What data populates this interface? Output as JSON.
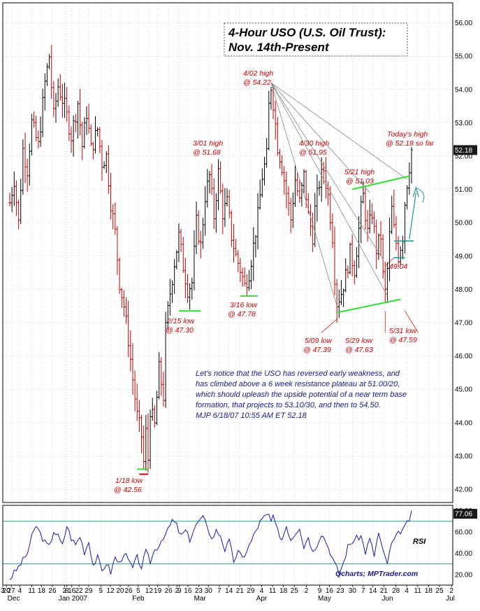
{
  "chart_data": [
    {
      "type": "line",
      "variant": "ohlc",
      "title": "4-Hour USO (U.S. Oil Trust): Nov. 14th-Present",
      "title_lines": [
        "4-Hour USO (U.S. Oil Trust):",
        "Nov. 14th-Present"
      ],
      "ylim": [
        41.6,
        56.6
      ],
      "yticks": [
        42.0,
        43.0,
        44.0,
        45.0,
        46.0,
        47.0,
        48.0,
        49.0,
        50.0,
        51.0,
        52.0,
        53.0,
        54.0,
        55.0,
        56.0
      ],
      "ytick_labels": [
        "42.00",
        "43.00",
        "44.00",
        "45.00",
        "46.00",
        "47.00",
        "48.00",
        "49.00",
        "50.00",
        "51.00",
        "52.00",
        "53.00",
        "54.00",
        "55.00",
        "56.00"
      ],
      "last_price_label": "52.18",
      "last_price": 52.18,
      "price_path": [
        [
          0,
          50.6
        ],
        [
          2,
          51.3
        ],
        [
          4,
          50.0
        ],
        [
          6,
          52.2
        ],
        [
          8,
          51.6
        ],
        [
          10,
          53.0
        ],
        [
          13,
          52.3
        ],
        [
          16,
          54.2
        ],
        [
          18,
          55.0
        ],
        [
          20,
          53.2
        ],
        [
          22,
          54.1
        ],
        [
          25,
          53.5
        ],
        [
          28,
          52.6
        ],
        [
          31,
          53.6
        ],
        [
          33,
          52.3
        ],
        [
          35,
          53.3
        ],
        [
          37,
          52.2
        ],
        [
          40,
          52.8
        ],
        [
          42,
          51.8
        ],
        [
          44,
          52.0
        ],
        [
          46,
          50.6
        ],
        [
          48,
          49.7
        ],
        [
          50,
          48.2
        ],
        [
          52,
          47.5
        ],
        [
          54,
          46.5
        ],
        [
          56,
          45.3
        ],
        [
          58,
          44.2
        ],
        [
          60,
          43.6
        ],
        [
          61,
          42.8
        ],
        [
          62,
          43.7
        ],
        [
          63,
          42.9
        ],
        [
          64,
          44.4
        ],
        [
          66,
          43.9
        ],
        [
          68,
          45.6
        ],
        [
          70,
          44.8
        ],
        [
          71,
          46.8
        ],
        [
          73,
          47.9
        ],
        [
          75,
          48.8
        ],
        [
          77,
          49.6
        ],
        [
          79,
          48.7
        ],
        [
          81,
          48.0
        ],
        [
          83,
          48.2
        ],
        [
          85,
          50.0
        ],
        [
          87,
          49.3
        ],
        [
          89,
          50.8
        ],
        [
          91,
          51.4
        ],
        [
          93,
          50.2
        ],
        [
          95,
          51.5
        ],
        [
          97,
          50.3
        ],
        [
          99,
          50.6
        ],
        [
          101,
          49.6
        ],
        [
          103,
          49.0
        ],
        [
          105,
          48.6
        ],
        [
          107,
          48.1
        ],
        [
          109,
          48.5
        ],
        [
          111,
          49.3
        ],
        [
          113,
          50.2
        ],
        [
          115,
          51.4
        ],
        [
          117,
          52.0
        ],
        [
          118,
          53.5
        ],
        [
          119,
          54.1
        ],
        [
          120,
          53.6
        ],
        [
          122,
          52.3
        ],
        [
          124,
          51.7
        ],
        [
          126,
          50.9
        ],
        [
          128,
          50.1
        ],
        [
          130,
          51.3
        ],
        [
          132,
          50.6
        ],
        [
          134,
          51.4
        ],
        [
          136,
          50.2
        ],
        [
          138,
          49.6
        ],
        [
          139,
          50.4
        ],
        [
          141,
          51.2
        ],
        [
          143,
          51.6
        ],
        [
          145,
          50.8
        ],
        [
          147,
          49.6
        ],
        [
          148,
          48.4
        ],
        [
          149,
          47.6
        ],
        [
          151,
          47.9
        ],
        [
          153,
          48.4
        ],
        [
          155,
          49.1
        ],
        [
          157,
          48.6
        ],
        [
          159,
          49.8
        ],
        [
          160,
          50.4
        ],
        [
          161,
          50.8
        ],
        [
          163,
          49.7
        ],
        [
          165,
          50.3
        ],
        [
          167,
          49.2
        ],
        [
          169,
          49.6
        ],
        [
          170,
          48.4
        ],
        [
          171,
          47.9
        ],
        [
          172,
          48.6
        ],
        [
          173,
          49.6
        ],
        [
          174,
          50.4
        ],
        [
          175,
          49.8
        ],
        [
          176,
          49.4
        ],
        [
          177,
          49.0
        ],
        [
          178,
          49.3
        ],
        [
          179,
          49.6
        ],
        [
          180,
          50.6
        ],
        [
          181,
          51.2
        ],
        [
          182,
          51.7
        ],
        [
          183,
          52.18
        ]
      ],
      "rsi": {
        "label": "RSI",
        "ylim": [
          10,
          85
        ],
        "yticks": [
          20,
          40,
          60,
          80
        ],
        "ytick_labels": [
          "20.00",
          "40.00",
          "60.00",
          "80.00"
        ],
        "reference_levels": [
          30,
          70
        ],
        "last_value": 77.06,
        "last_label": "77.06",
        "path": [
          [
            0,
            16
          ],
          [
            4,
            27
          ],
          [
            8,
            40
          ],
          [
            10,
            55
          ],
          [
            12,
            66
          ],
          [
            14,
            58
          ],
          [
            16,
            50
          ],
          [
            18,
            46
          ],
          [
            20,
            61
          ],
          [
            22,
            56
          ],
          [
            24,
            47
          ],
          [
            26,
            66
          ],
          [
            28,
            54
          ],
          [
            30,
            48
          ],
          [
            32,
            56
          ],
          [
            34,
            41
          ],
          [
            36,
            51
          ],
          [
            38,
            29
          ],
          [
            40,
            36
          ],
          [
            42,
            23
          ],
          [
            44,
            31
          ],
          [
            46,
            22
          ],
          [
            48,
            36
          ],
          [
            50,
            30
          ],
          [
            52,
            41
          ],
          [
            54,
            33
          ],
          [
            56,
            26
          ],
          [
            58,
            36
          ],
          [
            60,
            27
          ],
          [
            62,
            41
          ],
          [
            64,
            32
          ],
          [
            66,
            43
          ],
          [
            68,
            48
          ],
          [
            70,
            56
          ],
          [
            72,
            61
          ],
          [
            74,
            71
          ],
          [
            76,
            66
          ],
          [
            78,
            56
          ],
          [
            80,
            61
          ],
          [
            82,
            53
          ],
          [
            84,
            63
          ],
          [
            86,
            70
          ],
          [
            88,
            73
          ],
          [
            90,
            66
          ],
          [
            92,
            53
          ],
          [
            94,
            61
          ],
          [
            96,
            57
          ],
          [
            98,
            43
          ],
          [
            100,
            51
          ],
          [
            102,
            33
          ],
          [
            104,
            41
          ],
          [
            106,
            35
          ],
          [
            108,
            43
          ],
          [
            110,
            51
          ],
          [
            112,
            61
          ],
          [
            114,
            69
          ],
          [
            116,
            74
          ],
          [
            118,
            76
          ],
          [
            119,
            70
          ],
          [
            120,
            73
          ],
          [
            122,
            61
          ],
          [
            124,
            53
          ],
          [
            126,
            66
          ],
          [
            128,
            53
          ],
          [
            130,
            59
          ],
          [
            132,
            65
          ],
          [
            134,
            46
          ],
          [
            136,
            56
          ],
          [
            138,
            41
          ],
          [
            140,
            49
          ],
          [
            142,
            59
          ],
          [
            144,
            51
          ],
          [
            146,
            41
          ],
          [
            148,
            30
          ],
          [
            150,
            21
          ],
          [
            152,
            31
          ],
          [
            154,
            46
          ],
          [
            156,
            51
          ],
          [
            158,
            54
          ],
          [
            160,
            56
          ],
          [
            162,
            41
          ],
          [
            164,
            53
          ],
          [
            166,
            38
          ],
          [
            168,
            59
          ],
          [
            170,
            41
          ],
          [
            172,
            31
          ],
          [
            174,
            49
          ],
          [
            176,
            55
          ],
          [
            178,
            61
          ],
          [
            180,
            64
          ],
          [
            182,
            72
          ],
          [
            183,
            77
          ]
        ]
      },
      "x_ticks": [
        {
          "i": 0,
          "label": "3"
        },
        {
          "i": 3,
          "label": "20"
        },
        {
          "i": 7,
          "label": "27"
        },
        {
          "i": 14,
          "label": "4"
        },
        {
          "i": 24,
          "label": "11"
        },
        {
          "i": 32,
          "label": "18"
        },
        {
          "i": 41,
          "label": "26"
        },
        {
          "i": 51,
          "label": "2"
        },
        {
          "i": 53,
          "label": "8"
        },
        {
          "i": 57,
          "label": "16"
        },
        {
          "i": 63,
          "label": "22"
        },
        {
          "i": 71,
          "label": "29"
        },
        {
          "i": 81,
          "label": "5"
        },
        {
          "i": 89,
          "label": "12"
        },
        {
          "i": 97,
          "label": "20"
        },
        {
          "i": 104,
          "label": "26"
        },
        {
          "i": 112,
          "label": "5"
        },
        {
          "i": 121,
          "label": "12"
        },
        {
          "i": 128,
          "label": "19"
        },
        {
          "i": 137,
          "label": "26"
        },
        {
          "i": 144,
          "label": "2"
        },
        {
          "i": 146,
          "label": "9"
        },
        {
          "i": 153,
          "label": "16"
        },
        {
          "i": 162,
          "label": "23"
        },
        {
          "i": 170,
          "label": "30"
        },
        {
          "i": 179,
          "label": "7"
        },
        {
          "i": 187,
          "label": "14"
        },
        {
          "i": 196,
          "label": "21"
        },
        {
          "i": 205,
          "label": "29"
        },
        {
          "i": 214,
          "label": "4"
        },
        {
          "i": 223,
          "label": "11"
        },
        {
          "i": 232,
          "label": "18"
        },
        {
          "i": 241,
          "label": "25"
        },
        {
          "i": 251,
          "label": "2"
        },
        {
          "i": 262,
          "label": "9"
        },
        {
          "i": 270,
          "label": "16"
        },
        {
          "i": 279,
          "label": "23"
        },
        {
          "i": 289,
          "label": "30"
        },
        {
          "i": 298,
          "label": "7"
        },
        {
          "i": 306,
          "label": "14"
        },
        {
          "i": 315,
          "label": "21"
        },
        {
          "i": 325,
          "label": "28"
        },
        {
          "i": 334,
          "label": "4"
        },
        {
          "i": 343,
          "label": "11"
        },
        {
          "i": 352,
          "label": "18"
        },
        {
          "i": 361,
          "label": "25"
        },
        {
          "i": 371,
          "label": "2"
        }
      ],
      "month_labels": [
        {
          "i": 9,
          "label": "Dec"
        },
        {
          "i": 58,
          "label": "Jan 2007"
        },
        {
          "i": 112,
          "label": "Feb"
        },
        {
          "i": 163,
          "label": "Mar"
        },
        {
          "i": 214,
          "label": "Apr"
        },
        {
          "i": 266,
          "label": "May"
        },
        {
          "i": 318,
          "label": "Jun"
        },
        {
          "i": 370,
          "label": "Jul"
        }
      ],
      "annotations": [
        {
          "label": "1/18 low",
          "value": "@ 42.56"
        },
        {
          "label": "2/15 low",
          "value": "@ 47.30"
        },
        {
          "label": "3/01 high",
          "value": "@ 51.68"
        },
        {
          "label": "3/16 low",
          "value": "@ 47.78"
        },
        {
          "label": "4/02 high",
          "value": "@ 54.22"
        },
        {
          "label": "4/30 high",
          "value": "@ 51.95"
        },
        {
          "label": "5/21 high",
          "value": "@ 51.03"
        },
        {
          "label": "Today's high",
          "value": "@ 52.18 so far"
        },
        {
          "label": "5/09 low",
          "value": "@ 47.39"
        },
        {
          "label": "5/29 low",
          "value": "@ 47.63"
        },
        {
          "label": "5/31 low",
          "value": "@ 47.59"
        },
        {
          "label": "",
          "value": "49.04"
        }
      ],
      "commentary": [
        "Let's notice that the USO has reversed early weakness, and",
        "has climbed above a 6 week resistance plateau at 51.00/20,",
        "which should upleash the upside potential of a near term base",
        "formation, that projects to 53.10/30, and then to 54.50.",
        "MJP  6/18/07  10:55 AM ET  52.18"
      ],
      "credit": "Qcharts; MPTrader.com",
      "colors": {
        "bars": "#000000",
        "down_bars": "#cc0000",
        "annotation": "#cc0000",
        "trendline": "#33dd33",
        "fan_lines": "#888888",
        "arrow": "#1a9a9a",
        "rsi_line": "#1a1aaa",
        "rsi_levels": "#3a9a8a",
        "commentary": "#1a1a8c",
        "badge": "#1a1a1a"
      }
    }
  ]
}
